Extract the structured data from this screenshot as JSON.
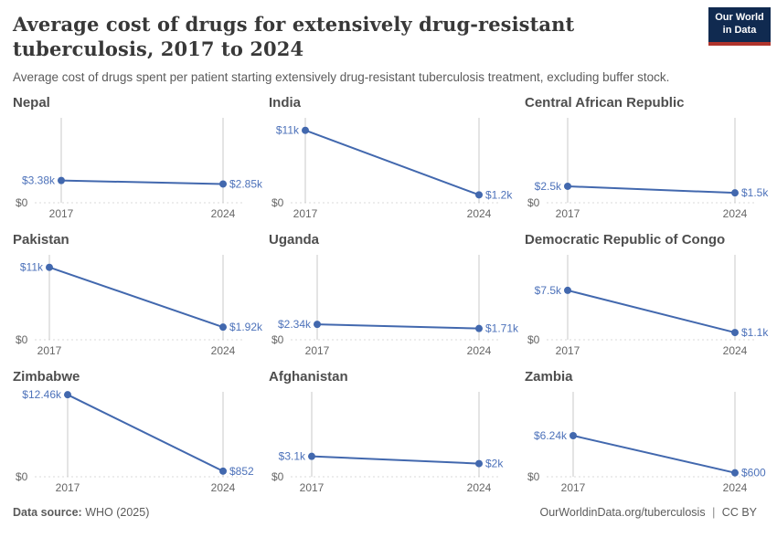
{
  "header": {
    "title": "Average cost of drugs for extensively drug-resistant tuberculosis, 2017 to 2024",
    "subtitle": "Average cost of drugs spent per patient starting extensively drug-resistant tuberculosis treatment, excluding buffer stock.",
    "logo": {
      "line1": "Our World",
      "line2": "in Data"
    }
  },
  "chart_data": {
    "type": "line",
    "layout": "small-multiples-3x3",
    "x": [
      2017,
      2024
    ],
    "x_tick_labels": [
      "2017",
      "2024"
    ],
    "ylim": [
      0,
      12900
    ],
    "y_zero_label": "$0",
    "unit": "US$ per patient",
    "grid": "dotted-zero-baseline-only",
    "legend_position": "none",
    "series": [
      {
        "name": "Nepal",
        "values": [
          3380,
          2850
        ],
        "value_labels": [
          "$3.38k",
          "$2.85k"
        ]
      },
      {
        "name": "India",
        "values": [
          11000,
          1200
        ],
        "value_labels": [
          "$11k",
          "$1.2k"
        ]
      },
      {
        "name": "Central African Republic",
        "values": [
          2500,
          1500
        ],
        "value_labels": [
          "$2.5k",
          "$1.5k"
        ]
      },
      {
        "name": "Pakistan",
        "values": [
          11000,
          1920
        ],
        "value_labels": [
          "$11k",
          "$1.92k"
        ]
      },
      {
        "name": "Uganda",
        "values": [
          2340,
          1710
        ],
        "value_labels": [
          "$2.34k",
          "$1.71k"
        ]
      },
      {
        "name": "Democratic Republic of Congo",
        "values": [
          7500,
          1100
        ],
        "value_labels": [
          "$7.5k",
          "$1.1k"
        ]
      },
      {
        "name": "Zimbabwe",
        "values": [
          12460,
          852
        ],
        "value_labels": [
          "$12.46k",
          "$852"
        ]
      },
      {
        "name": "Afghanistan",
        "values": [
          3100,
          2000
        ],
        "value_labels": [
          "$3.1k",
          "$2k"
        ]
      },
      {
        "name": "Zambia",
        "values": [
          6240,
          600
        ],
        "value_labels": [
          "$6.24k",
          "$600"
        ]
      }
    ]
  },
  "footer": {
    "source_label": "Data source:",
    "source": "WHO (2025)",
    "link": "OurWorldinData.org/tuberculosis",
    "separator": "|",
    "license": "CC BY"
  },
  "colors": {
    "line": "#4268ae",
    "value_label": "#4d72ba",
    "axis_line": "#c8c8c8",
    "baseline_dotted": "#d9d9d9",
    "axis_text": "#666666",
    "title_text": "#383838",
    "subtitle_text": "#5b5b5b",
    "logo_navy": "#102a50",
    "logo_red": "#b0342c"
  }
}
